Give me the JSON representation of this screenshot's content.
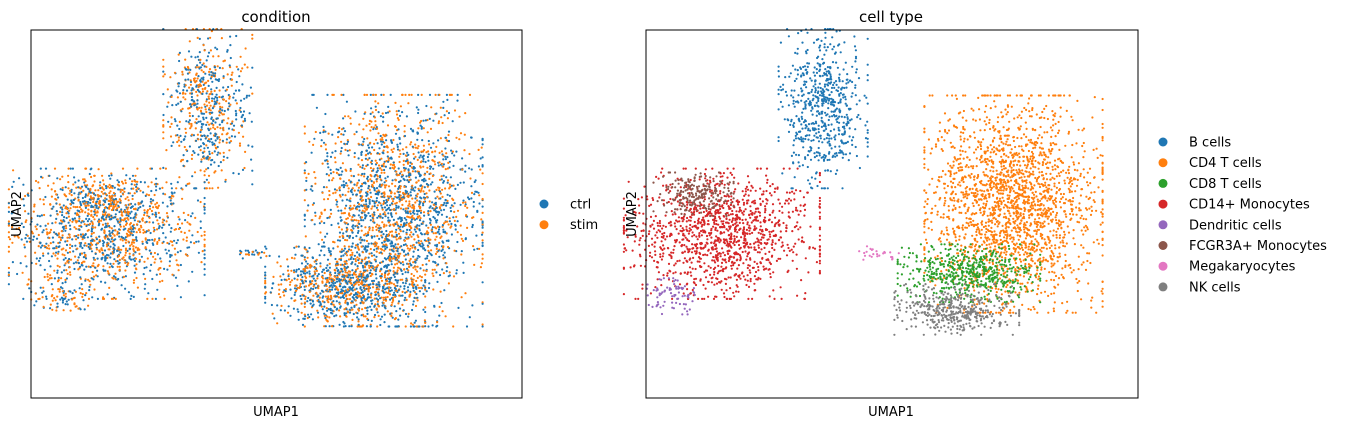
{
  "chart_data": [
    {
      "type": "scatter",
      "title": "condition",
      "xlabel": "UMAP1",
      "ylabel": "UMAP2",
      "ticks": "none",
      "grid": false,
      "legend_position": "right",
      "legend": [
        {
          "name": "ctrl",
          "color": "#1f77b4"
        },
        {
          "name": "stim",
          "color": "#ff7f0e"
        }
      ],
      "clusters": [
        {
          "label": "B cells region",
          "center": [
            4.3,
            8.7
          ],
          "spread": [
            0.5,
            1.1
          ],
          "n": 620,
          "mix": [
            0.5,
            0.5
          ]
        },
        {
          "label": "Monocyte region",
          "center": [
            1.8,
            4.9
          ],
          "spread": [
            1.1,
            0.9
          ],
          "n": 1250,
          "mix": [
            0.48,
            0.52
          ]
        },
        {
          "label": "FCGR3A region",
          "center": [
            1.7,
            6.0
          ],
          "spread": [
            0.6,
            0.3
          ],
          "n": 220,
          "mix": [
            0.5,
            0.5
          ]
        },
        {
          "label": "T cell region",
          "center": [
            8.9,
            5.6
          ],
          "spread": [
            1.0,
            1.6
          ],
          "n": 2100,
          "mix": [
            0.5,
            0.5
          ]
        },
        {
          "label": "NK/CD8 region",
          "center": [
            7.7,
            3.3
          ],
          "spread": [
            0.9,
            0.55
          ],
          "n": 900,
          "mix": [
            0.55,
            0.45
          ]
        },
        {
          "label": "Dendritic region",
          "center": [
            0.7,
            3.0
          ],
          "spread": [
            0.35,
            0.25
          ],
          "n": 80,
          "mix": [
            0.5,
            0.5
          ]
        },
        {
          "label": "Megakaryocytes strand",
          "center": [
            5.5,
            4.3
          ],
          "spread": [
            0.25,
            0.08
          ],
          "n": 25,
          "mix": [
            0.5,
            0.5
          ]
        }
      ]
    },
    {
      "type": "scatter",
      "title": "cell type",
      "xlabel": "UMAP1",
      "ylabel": "UMAP2",
      "ticks": "none",
      "grid": false,
      "legend_position": "right",
      "legend": [
        {
          "name": "B cells",
          "color": "#1f77b4"
        },
        {
          "name": "CD4 T cells",
          "color": "#ff7f0e"
        },
        {
          "name": "CD8 T cells",
          "color": "#2ca02c"
        },
        {
          "name": "CD14+ Monocytes",
          "color": "#d62728"
        },
        {
          "name": "Dendritic cells",
          "color": "#9467bd"
        },
        {
          "name": "FCGR3A+ Monocytes",
          "color": "#8c564b"
        },
        {
          "name": "Megakaryocytes",
          "color": "#e377c2"
        },
        {
          "name": "NK cells",
          "color": "#7f7f7f"
        }
      ],
      "clusters": [
        {
          "label": "B cells",
          "center": [
            4.3,
            8.7
          ],
          "spread": [
            0.5,
            1.1
          ],
          "n": 620,
          "color": "#1f77b4"
        },
        {
          "label": "CD14+ Monocytes",
          "center": [
            1.8,
            4.9
          ],
          "spread": [
            1.1,
            0.9
          ],
          "n": 1250,
          "color": "#d62728"
        },
        {
          "label": "FCGR3A+ Monocytes",
          "center": [
            1.1,
            6.1
          ],
          "spread": [
            0.45,
            0.3
          ],
          "n": 220,
          "color": "#8c564b"
        },
        {
          "label": "CD4 T cells",
          "center": [
            9.0,
            5.8
          ],
          "spread": [
            1.0,
            1.5
          ],
          "n": 2100,
          "color": "#ff7f0e"
        },
        {
          "label": "CD8 T cells",
          "center": [
            7.9,
            3.7
          ],
          "spread": [
            0.8,
            0.4
          ],
          "n": 550,
          "color": "#2ca02c"
        },
        {
          "label": "NK cells",
          "center": [
            7.6,
            2.6
          ],
          "spread": [
            0.7,
            0.35
          ],
          "n": 420,
          "color": "#7f7f7f"
        },
        {
          "label": "Dendritic cells",
          "center": [
            0.6,
            3.0
          ],
          "spread": [
            0.3,
            0.25
          ],
          "n": 80,
          "color": "#9467bd"
        },
        {
          "label": "Megakaryocytes",
          "center": [
            5.6,
            4.3
          ],
          "spread": [
            0.3,
            0.1
          ],
          "n": 25,
          "color": "#e377c2"
        }
      ]
    }
  ]
}
